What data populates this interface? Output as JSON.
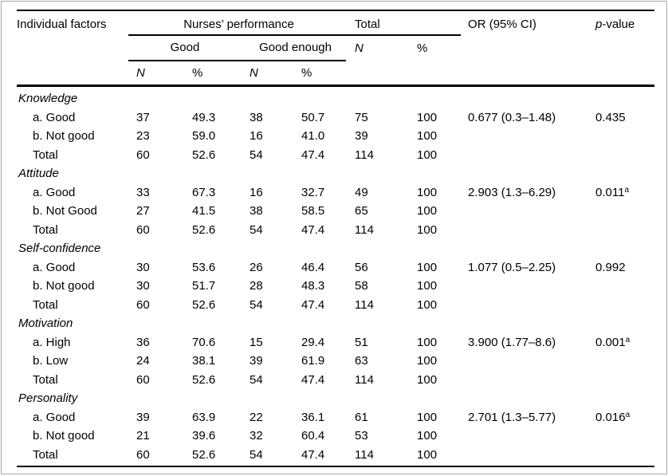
{
  "colors": {
    "text": "#000000",
    "rule": "#000000",
    "border": "#a6a6a6",
    "bg": "#ffffff"
  },
  "table": {
    "header": {
      "individual_factors": "Individual factors",
      "nurses_performance": "Nurses’ performance",
      "total": "Total",
      "or_ci": "OR (95% CI)",
      "p_italic": "p",
      "p_rest": "-value",
      "good": "Good",
      "good_enough": "Good enough",
      "n": "N",
      "pct": "%"
    },
    "sections": [
      {
        "factor": "Knowledge",
        "rows": [
          {
            "label": "a. Good",
            "gn": "37",
            "gp": "49.3",
            "en": "38",
            "ep": "50.7",
            "tn": "75",
            "tp": "100",
            "or": "0.677 (0.3–1.48)",
            "p": "0.435",
            "p_sup": ""
          },
          {
            "label": "b. Not good",
            "gn": "23",
            "gp": "59.0",
            "en": "16",
            "ep": "41.0",
            "tn": "39",
            "tp": "100"
          },
          {
            "label": "Total",
            "gn": "60",
            "gp": "52.6",
            "en": "54",
            "ep": "47.4",
            "tn": "114",
            "tp": "100"
          }
        ]
      },
      {
        "factor": "Attitude",
        "rows": [
          {
            "label": "a. Good",
            "gn": "33",
            "gp": "67.3",
            "en": "16",
            "ep": "32.7",
            "tn": "49",
            "tp": "100",
            "or": "2.903 (1.3–6.29)",
            "p": "0.011",
            "p_sup": "a"
          },
          {
            "label": "b. Not Good",
            "gn": "27",
            "gp": "41.5",
            "en": "38",
            "ep": "58.5",
            "tn": "65",
            "tp": "100"
          },
          {
            "label": "Total",
            "gn": "60",
            "gp": "52.6",
            "en": "54",
            "ep": "47.4",
            "tn": "114",
            "tp": "100"
          }
        ]
      },
      {
        "factor": "Self-confidence",
        "rows": [
          {
            "label": "a. Good",
            "gn": "30",
            "gp": "53.6",
            "en": "26",
            "ep": "46.4",
            "tn": "56",
            "tp": "100",
            "or": "1.077 (0.5–2.25)",
            "p": "0.992",
            "p_sup": ""
          },
          {
            "label": "b. Not good",
            "gn": "30",
            "gp": "51.7",
            "en": "28",
            "ep": "48.3",
            "tn": "58",
            "tp": "100"
          },
          {
            "label": "Total",
            "gn": "60",
            "gp": "52.6",
            "en": "54",
            "ep": "47.4",
            "tn": "114",
            "tp": "100"
          }
        ]
      },
      {
        "factor": "Motivation",
        "rows": [
          {
            "label": "a. High",
            "gn": "36",
            "gp": "70.6",
            "en": "15",
            "ep": "29.4",
            "tn": "51",
            "tp": "100",
            "or": "3.900 (1.77–8.6)",
            "p": "0.001",
            "p_sup": "a"
          },
          {
            "label": "b. Low",
            "gn": "24",
            "gp": "38.1",
            "en": "39",
            "ep": "61.9",
            "tn": "63",
            "tp": "100"
          },
          {
            "label": "Total",
            "gn": "60",
            "gp": "52.6",
            "en": "54",
            "ep": "47.4",
            "tn": "114",
            "tp": "100"
          }
        ]
      },
      {
        "factor": "Personality",
        "rows": [
          {
            "label": "a. Good",
            "gn": "39",
            "gp": "63.9",
            "en": "22",
            "ep": "36.1",
            "tn": "61",
            "tp": "100",
            "or": "2.701 (1.3–5.77)",
            "p": "0.016",
            "p_sup": "a"
          },
          {
            "label": "b. Not good",
            "gn": "21",
            "gp": "39.6",
            "en": "32",
            "ep": "60.4",
            "tn": "53",
            "tp": "100"
          },
          {
            "label": "Total",
            "gn": "60",
            "gp": "52.6",
            "en": "54",
            "ep": "47.4",
            "tn": "114",
            "tp": "100"
          }
        ]
      }
    ]
  }
}
